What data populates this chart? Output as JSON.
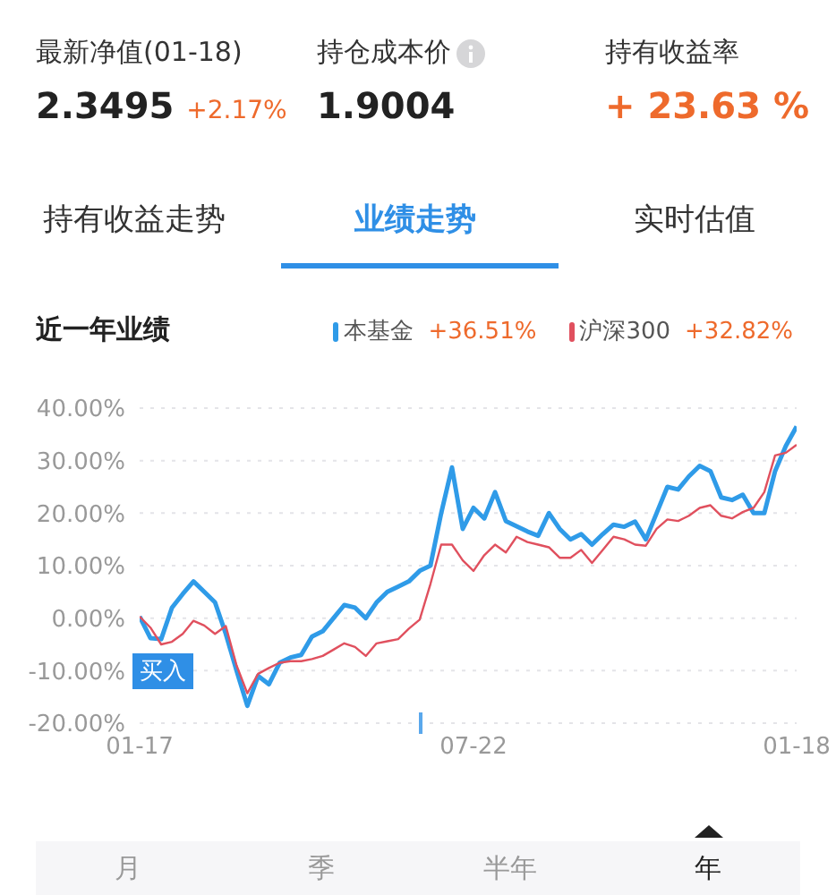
{
  "chart_data": {
    "type": "line",
    "title": "近一年业绩",
    "annotations": [
      "最新净值(01-18)",
      "2.3495",
      "+2.17%",
      "持仓成本价",
      "1.9004",
      "持有收益率",
      "+ 23.63 %",
      "持有收益走势",
      "业绩走势",
      "实时估值",
      "+36.51%",
      "+32.82%",
      "买入",
      "月",
      "季",
      "半年",
      "年"
    ],
    "categories": [
      "01-17",
      null,
      null,
      null,
      null,
      null,
      null,
      null,
      null,
      null,
      null,
      null,
      null,
      null,
      null,
      null,
      null,
      null,
      null,
      null,
      null,
      null,
      null,
      null,
      null,
      null,
      null,
      null,
      null,
      null,
      null,
      "07-22",
      null,
      null,
      null,
      null,
      null,
      null,
      null,
      null,
      null,
      null,
      null,
      null,
      null,
      null,
      null,
      null,
      null,
      null,
      null,
      null,
      null,
      null,
      null,
      null,
      null,
      null,
      null,
      null,
      null,
      "01-18"
    ],
    "series": [
      {
        "name": "本基金",
        "color": "#2f9be8",
        "values": [
          0.3,
          -3.8,
          -4,
          2,
          4.6,
          7,
          5,
          3,
          -3,
          -10,
          -16.7,
          -11,
          -12.6,
          -8.5,
          -7.5,
          -7,
          -3.5,
          -2.5,
          0,
          2.5,
          2,
          0,
          3,
          5,
          6,
          7,
          9,
          10,
          20,
          28.7,
          17,
          21,
          19,
          24,
          18.5,
          17.5,
          16.5,
          15.7,
          20,
          17,
          15,
          16,
          14,
          16,
          17.8,
          17.4,
          18.4,
          15,
          20,
          25,
          24.5,
          27,
          29,
          28,
          23,
          22.5,
          23.5,
          20,
          20,
          28,
          32.8,
          36.5
        ]
      },
      {
        "name": "沪深300",
        "color": "#e0505e",
        "values": [
          0.3,
          -1.8,
          -5,
          -4.5,
          -3,
          -0.5,
          -1.4,
          -3,
          -1.5,
          -9,
          -14.3,
          -10.6,
          -9.5,
          -8.5,
          -8.2,
          -8.2,
          -7.8,
          -7.2,
          -6,
          -4.8,
          -5.5,
          -7.2,
          -4.8,
          -4.4,
          -4,
          -2,
          -0.3,
          6.5,
          14,
          14,
          11,
          9,
          12,
          14,
          12.5,
          15.5,
          14.5,
          14,
          13.5,
          11.5,
          11.5,
          13,
          10.5,
          13,
          15.5,
          15,
          14,
          13.8,
          17,
          18.8,
          18.5,
          19.5,
          21,
          21.5,
          19.5,
          19,
          20.2,
          21,
          24,
          31,
          31.5,
          33
        ]
      }
    ],
    "ylim": [
      -20,
      40
    ],
    "yticks": [
      {
        "value": -20,
        "label": "-20.00%"
      },
      {
        "value": -10,
        "label": "-10.00%"
      },
      {
        "value": 0,
        "label": "0.00%"
      },
      {
        "value": 10,
        "label": "10.00%"
      },
      {
        "value": 20,
        "label": "20.00%"
      },
      {
        "value": 30,
        "label": "30.00%"
      },
      {
        "value": 40,
        "label": "40.00%"
      }
    ],
    "grid": "y",
    "legend": "top right",
    "marker": "none",
    "line_style": "solid"
  }
}
